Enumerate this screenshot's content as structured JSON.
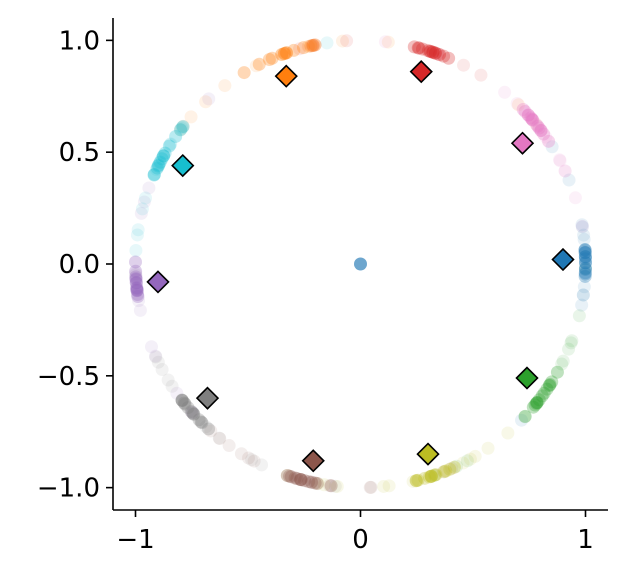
{
  "chart_data": {
    "type": "scatter",
    "title": "",
    "xlabel": "",
    "ylabel": "",
    "xlim": [
      -1.1,
      1.1
    ],
    "ylim": [
      -1.1,
      1.1
    ],
    "grid": false,
    "x_ticks": [
      -1,
      0,
      1
    ],
    "x_tick_labels": [
      "−1",
      "0",
      "1"
    ],
    "y_ticks": [
      -1.0,
      -0.5,
      0.0,
      0.5,
      1.0
    ],
    "y_tick_labels": [
      "−1.0",
      "−0.5",
      "0.0",
      "0.5",
      "1.0"
    ],
    "center_point": {
      "x": 0.0,
      "y": 0.0,
      "color": "#1f77b4"
    },
    "clusters": [
      {
        "color": "#1f77b4",
        "prototype": [
          0.9,
          0.02
        ],
        "angle_deg": 1,
        "cluster_spread_deg": 3,
        "halo_spread_deg": 22
      },
      {
        "color": "#ff7f0e",
        "prototype": [
          -0.33,
          0.84
        ],
        "angle_deg": 111,
        "cluster_spread_deg": 5,
        "halo_spread_deg": 25
      },
      {
        "color": "#2ca02c",
        "prototype": [
          0.74,
          -0.51
        ],
        "angle_deg": -35,
        "cluster_spread_deg": 4,
        "halo_spread_deg": 22
      },
      {
        "color": "#d62728",
        "prototype": [
          0.27,
          0.86
        ],
        "angle_deg": 73,
        "cluster_spread_deg": 3,
        "halo_spread_deg": 20
      },
      {
        "color": "#9467bd",
        "prototype": [
          -0.9,
          -0.08
        ],
        "angle_deg": 184,
        "cluster_spread_deg": 3,
        "halo_spread_deg": 25
      },
      {
        "color": "#8c564b",
        "prototype": [
          -0.21,
          -0.88
        ],
        "angle_deg": 255,
        "cluster_spread_deg": 3,
        "halo_spread_deg": 22
      },
      {
        "color": "#e377c2",
        "prototype": [
          0.72,
          0.54
        ],
        "angle_deg": 37,
        "cluster_spread_deg": 4,
        "halo_spread_deg": 22
      },
      {
        "color": "#7f7f7f",
        "prototype": [
          -0.68,
          -0.6
        ],
        "angle_deg": 221,
        "cluster_spread_deg": 3,
        "halo_spread_deg": 22
      },
      {
        "color": "#bcbd22",
        "prototype": [
          0.3,
          -0.85
        ],
        "angle_deg": 289,
        "cluster_spread_deg": 3,
        "halo_spread_deg": 20
      },
      {
        "color": "#17becf",
        "prototype": [
          -0.79,
          0.44
        ],
        "angle_deg": 149,
        "cluster_spread_deg": 5,
        "halo_spread_deg": 22
      }
    ]
  }
}
